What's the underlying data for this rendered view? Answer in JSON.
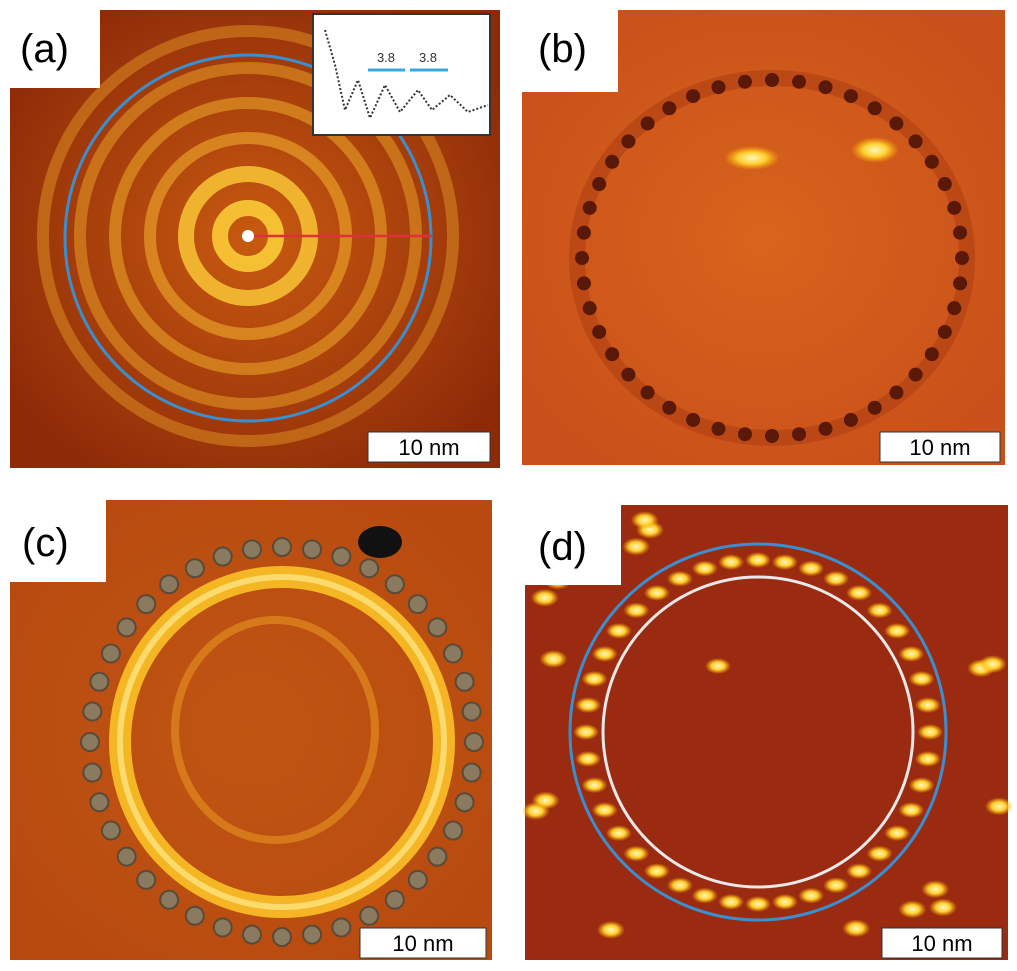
{
  "panels": [
    {
      "label": "(a)",
      "scale_bar": "10 nm",
      "inset": {
        "labels": [
          "3.8",
          "3.8"
        ]
      }
    },
    {
      "label": "(b)",
      "scale_bar": "10 nm"
    },
    {
      "label": "(c)",
      "scale_bar": "10 nm"
    },
    {
      "label": "(d)",
      "scale_bar": "10 nm"
    }
  ]
}
